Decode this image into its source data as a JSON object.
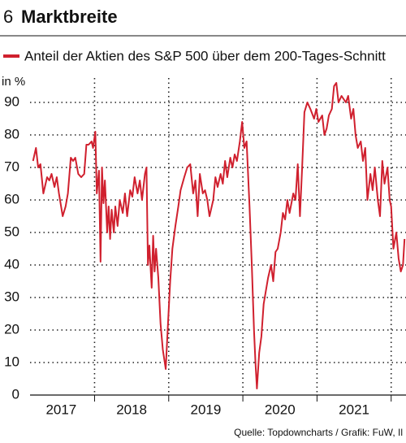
{
  "chart_data": {
    "type": "line",
    "title_number": "6",
    "title": "Marktbreite",
    "y_unit": "in %",
    "source": "Quelle: Topdowncharts / Grafik: FuW, Il",
    "x": [
      2017.17,
      2017.21,
      2017.24,
      2017.27,
      2017.31,
      2017.36,
      2017.39,
      2017.42,
      2017.46,
      2017.49,
      2017.52,
      2017.57,
      2017.61,
      2017.64,
      2017.68,
      2017.71,
      2017.74,
      2017.78,
      2017.82,
      2017.86,
      2017.89,
      2017.92,
      2017.96,
      2017.98,
      2018.01,
      2018.03,
      2018.06,
      2018.08,
      2018.1,
      2018.12,
      2018.14,
      2018.17,
      2018.19,
      2018.21,
      2018.23,
      2018.26,
      2018.28,
      2018.31,
      2018.34,
      2018.38,
      2018.41,
      2018.44,
      2018.48,
      2018.51,
      2018.54,
      2018.58,
      2018.61,
      2018.64,
      2018.68,
      2018.7,
      2018.72,
      2018.74,
      2018.77,
      2018.79,
      2018.81,
      2018.83,
      2018.86,
      2018.89,
      2018.92,
      2018.96,
      2018.99,
      2019.02,
      2019.05,
      2019.09,
      2019.13,
      2019.16,
      2019.21,
      2019.25,
      2019.29,
      2019.33,
      2019.36,
      2019.39,
      2019.42,
      2019.46,
      2019.49,
      2019.52,
      2019.55,
      2019.6,
      2019.63,
      2019.66,
      2019.7,
      2019.73,
      2019.76,
      2019.79,
      2019.83,
      2019.86,
      2019.89,
      2019.92,
      2019.96,
      2019.99,
      2020.02,
      2020.05,
      2020.09,
      2020.12,
      2020.15,
      2020.17,
      2020.19,
      2020.22,
      2020.25,
      2020.28,
      2020.31,
      2020.34,
      2020.38,
      2020.41,
      2020.44,
      2020.47,
      2020.51,
      2020.54,
      2020.57,
      2020.6,
      2020.63,
      2020.68,
      2020.71,
      2020.74,
      2020.77,
      2020.8,
      2020.83,
      2020.87,
      2020.91,
      2020.96,
      2020.99,
      2021.02,
      2021.07,
      2021.1,
      2021.13,
      2021.16,
      2021.2,
      2021.23,
      2021.26,
      2021.29,
      2021.33,
      2021.36,
      2021.39,
      2021.42,
      2021.46,
      2021.49,
      2021.52,
      2021.55,
      2021.59,
      2021.62,
      2021.65,
      2021.68,
      2021.72,
      2021.75,
      2021.78,
      2021.82,
      2021.85,
      2021.88,
      2021.91,
      2021.95,
      2021.98,
      2022.0,
      2022.03,
      2022.07,
      2022.1,
      2022.13,
      2022.16,
      2022.18
    ],
    "series": [
      {
        "name": "Anteil der Aktien des S&P 500 über dem 200-Tages-Schnitt",
        "color": "#d0202e",
        "values": [
          72,
          76,
          70,
          71,
          62,
          67,
          66,
          68,
          64,
          67,
          62,
          55,
          58,
          62,
          73,
          72,
          73,
          68,
          67,
          68,
          77,
          77,
          78,
          76,
          81,
          62,
          69,
          41,
          70,
          59,
          66,
          50,
          58,
          48,
          57,
          50,
          58,
          52,
          60,
          56,
          62,
          55,
          63,
          61,
          67,
          62,
          66,
          60,
          68,
          70,
          40,
          46,
          33,
          49,
          38,
          45,
          36,
          22,
          14,
          8,
          22,
          35,
          45,
          52,
          58,
          63,
          67,
          70,
          71,
          62,
          66,
          55,
          68,
          62,
          63,
          60,
          55,
          60,
          67,
          64,
          68,
          65,
          72,
          67,
          73,
          70,
          74,
          72,
          78,
          84,
          76,
          78,
          58,
          40,
          20,
          10,
          2,
          13,
          18,
          28,
          32,
          36,
          40,
          35,
          44,
          45,
          50,
          56,
          54,
          60,
          56,
          62,
          60,
          71,
          55,
          70,
          87,
          90,
          88,
          85,
          88,
          84,
          86,
          80,
          82,
          86,
          88,
          95,
          96,
          90,
          92,
          91,
          90,
          92,
          85,
          88,
          80,
          76,
          78,
          72,
          76,
          60,
          68,
          63,
          70,
          60,
          55,
          72,
          65,
          70,
          60,
          58,
          45,
          50,
          42,
          38,
          40,
          48
        ]
      }
    ],
    "xlim": [
      2017.13,
      2022.2
    ],
    "xgrid": [
      2018,
      2019,
      2020,
      2021,
      2022
    ],
    "xticks": [
      {
        "value": 2017.55,
        "label": "2017"
      },
      {
        "value": 2018.5,
        "label": "2018"
      },
      {
        "value": 2019.5,
        "label": "2019"
      },
      {
        "value": 2020.5,
        "label": "2020"
      },
      {
        "value": 2021.5,
        "label": "2021"
      }
    ],
    "ylim": [
      0,
      97.5
    ],
    "yticks": [
      0,
      10,
      20,
      30,
      40,
      50,
      60,
      70,
      80,
      90
    ],
    "grid": true
  }
}
